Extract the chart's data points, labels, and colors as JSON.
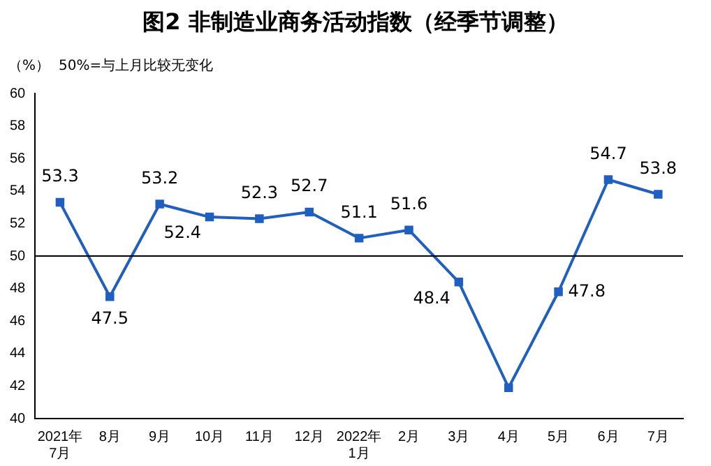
{
  "chart_data": {
    "type": "line",
    "title": "图2  非制造业商务活动指数（经季节调整）",
    "ylabel": "（%）",
    "annotations": [
      "50%=与上月比较无变化"
    ],
    "categories": [
      "2021年\n7月",
      "8月",
      "9月",
      "10月",
      "11月",
      "12月",
      "2022年\n1月",
      "2月",
      "3月",
      "4月",
      "5月",
      "6月",
      "7月"
    ],
    "series": [
      {
        "color": "#1f5fc0",
        "values": [
          53.3,
          47.5,
          53.2,
          52.4,
          52.3,
          52.7,
          51.1,
          51.6,
          48.4,
          41.9,
          47.8,
          54.7,
          53.8
        ],
        "value_labels": [
          "53.3",
          "47.5",
          "53.2",
          "52.4",
          "52.3",
          "52.7",
          "51.1",
          "51.6",
          "48.4",
          null,
          "47.8",
          "54.7",
          "53.8"
        ]
      }
    ],
    "ylim": [
      40,
      60
    ],
    "yticks": [
      40,
      42,
      44,
      46,
      48,
      50,
      52,
      54,
      56,
      58,
      60
    ],
    "ref_lines": [
      {
        "axis": "y",
        "value": 50,
        "color": "#000000"
      }
    ],
    "marker": "square",
    "line_style": "solid",
    "grid": false,
    "legend": false
  }
}
